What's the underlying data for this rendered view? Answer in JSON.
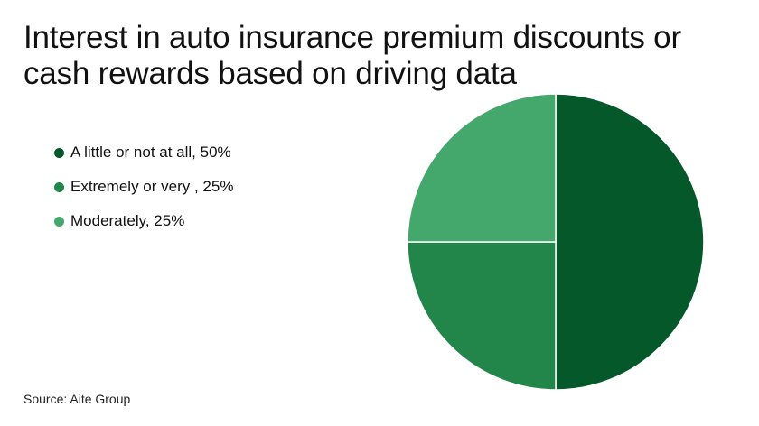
{
  "chart_data": {
    "type": "pie",
    "title": "Interest in auto insurance premium discounts or cash rewards based on driving data",
    "slices": [
      {
        "label": "A little or not at all, 50%",
        "value": 50,
        "color": "#05582a"
      },
      {
        "label": "Extremely or very , 25%",
        "value": 25,
        "color": "#22864a"
      },
      {
        "label": "Moderately, 25%",
        "value": 25,
        "color": "#44a86d"
      }
    ],
    "legend_position": "left",
    "start_angle": "12 o'clock",
    "direction": "clockwise",
    "source": "Source: Aite Group"
  }
}
